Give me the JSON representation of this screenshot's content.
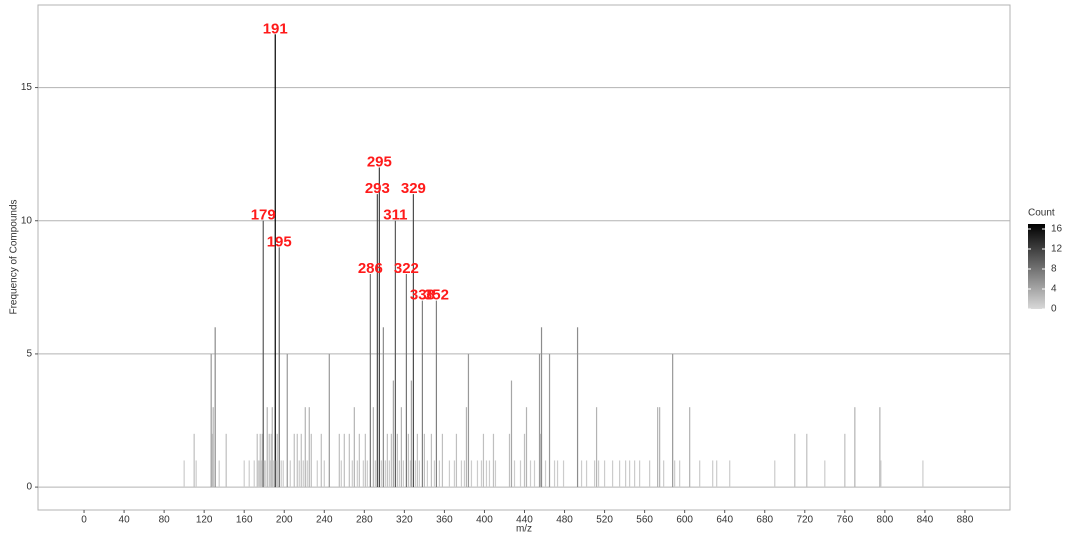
{
  "chart_data": {
    "type": "bar",
    "x_label": "m/z",
    "y_label": "Frequency of Compounds",
    "x": [
      100,
      110,
      112,
      127,
      128,
      129,
      131,
      135,
      142,
      160,
      165,
      170,
      173,
      174,
      175,
      176,
      177,
      178,
      179,
      180,
      181,
      183,
      185,
      186,
      187,
      188,
      189,
      191,
      192,
      193,
      195,
      197,
      199,
      203,
      206,
      210,
      213,
      215,
      217,
      219,
      221,
      223,
      225,
      227,
      233,
      237,
      240,
      245,
      255,
      257,
      260,
      265,
      268,
      270,
      273,
      275,
      279,
      281,
      283,
      286,
      289,
      291,
      293,
      295,
      297,
      299,
      301,
      303,
      305,
      307,
      309,
      311,
      313,
      315,
      317,
      319,
      322,
      324,
      326,
      327,
      329,
      331,
      333,
      335,
      338,
      340,
      343,
      347,
      350,
      352,
      355,
      358,
      365,
      370,
      372,
      377,
      380,
      382,
      384,
      387,
      393,
      397,
      399,
      402,
      405,
      409,
      411,
      425,
      427,
      430,
      436,
      440,
      442,
      446,
      450,
      455,
      456,
      457,
      461,
      465,
      470,
      473,
      479,
      493,
      497,
      502,
      510,
      512,
      514,
      520,
      528,
      535,
      541,
      545,
      550,
      555,
      565,
      573,
      575,
      579,
      588,
      590,
      595,
      605,
      615,
      628,
      632,
      645,
      690,
      710,
      722,
      740,
      760,
      770,
      795,
      796,
      838
    ],
    "values": [
      1,
      2,
      1,
      5,
      2,
      3,
      6,
      1,
      2,
      1,
      1,
      1,
      2,
      1,
      1,
      2,
      1,
      2,
      10,
      1,
      1,
      3,
      2,
      1,
      2,
      3,
      1,
      17,
      1,
      2,
      9,
      1,
      1,
      5,
      1,
      2,
      2,
      1,
      2,
      1,
      3,
      1,
      3,
      2,
      1,
      2,
      1,
      5,
      2,
      1,
      2,
      2,
      1,
      3,
      1,
      2,
      1,
      2,
      1,
      8,
      3,
      1,
      11,
      12,
      1,
      6,
      1,
      2,
      1,
      2,
      4,
      10,
      2,
      1,
      3,
      1,
      8,
      2,
      1,
      4,
      11,
      1,
      2,
      1,
      7,
      2,
      1,
      2,
      1,
      7,
      1,
      2,
      1,
      1,
      2,
      1,
      1,
      3,
      5,
      1,
      1,
      1,
      2,
      1,
      1,
      2,
      1,
      2,
      4,
      1,
      1,
      2,
      3,
      1,
      1,
      5,
      2,
      6,
      1,
      5,
      1,
      1,
      1,
      6,
      1,
      1,
      1,
      3,
      1,
      1,
      1,
      1,
      1,
      1,
      1,
      1,
      1,
      3,
      3,
      1,
      5,
      1,
      1,
      3,
      1,
      1,
      1,
      1,
      1,
      2,
      2,
      1,
      2,
      3,
      3,
      1,
      1
    ],
    "annotations": [
      191,
      179,
      195,
      295,
      293,
      329,
      311,
      286,
      322,
      338,
      352
    ],
    "xlim": [
      -46,
      925
    ],
    "xticks": [
      0,
      40,
      80,
      120,
      160,
      200,
      240,
      280,
      320,
      360,
      400,
      440,
      480,
      520,
      560,
      600,
      640,
      680,
      720,
      760,
      800,
      840,
      880
    ],
    "ylim": [
      -0.86,
      18.1
    ],
    "yticks": [
      0,
      5,
      10,
      15
    ],
    "grid": true,
    "legend": {
      "title": "Count",
      "ticks": [
        16,
        12,
        8,
        4,
        0
      ],
      "range": [
        0,
        17
      ],
      "color_low": "#d9d9d9",
      "color_high": "#000000"
    }
  }
}
